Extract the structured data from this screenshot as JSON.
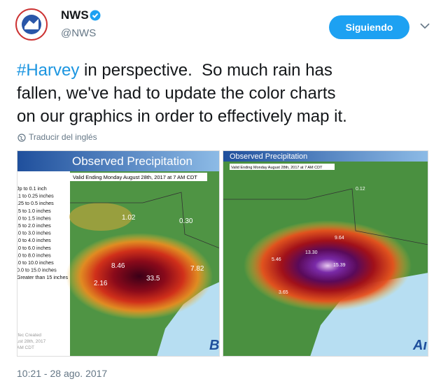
{
  "header": {
    "name": "NWS",
    "handle": "@NWS",
    "follow": "Siguiendo"
  },
  "tweet": {
    "hashtag": "#Harvey",
    "lines": [
      " in perspective.  So much rain has",
      "fallen, we've had to update the color charts",
      "on our graphics in order to effectively map it."
    ]
  },
  "translate": "Traducir del inglés",
  "images": [
    {
      "title": "Observed Precipitation",
      "valid": "Valid Ending Monday August 28th, 2017 at 7 AM CDT",
      "legend": [
        "Jp to 0.1 inch",
        ".1 to 0.25 inches",
        ".25 to 0.5 inches",
        ".5 to 1.0 inches",
        ".0 to 1.5 inches",
        ".5 to 2.0 inches",
        ".0 to 3.0 inches",
        ".0 to 4.0 inches",
        ".0 to 6.0 inches",
        ".0 to 8.0 inches",
        ".0 to 10.0 inches",
        "0.0 to 15.0 inches",
        "Greater than 15 inches"
      ],
      "credit": [
        "ifec Created",
        "ust 28th, 2017",
        "AM CDT"
      ],
      "labels": [
        "8.46",
        "33.5",
        "7.82",
        "2.16",
        "1.02",
        "0.30"
      ],
      "brand": "Bı"
    },
    {
      "title": "Observed Precipitation",
      "valid": "Valid Ending Monday August 28th, 2017 at 7 AM CDT",
      "labels": [
        "13.30",
        "5.46",
        "15.39",
        "9.64",
        "3.65",
        "0.12"
      ],
      "brand": "Aı"
    }
  ],
  "timestamp": "10:21 - 28 ago. 2017"
}
